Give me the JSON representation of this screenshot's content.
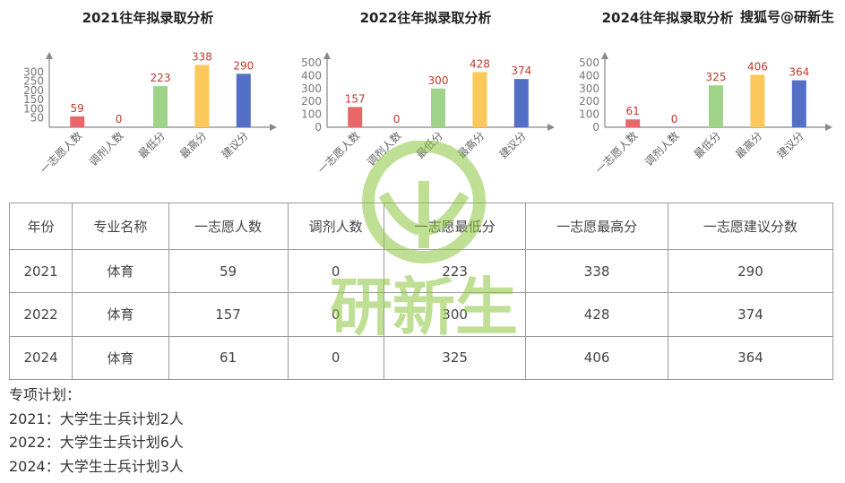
{
  "chart_data": [
    {
      "type": "bar",
      "title": "2021往年拟录取分析",
      "categories": [
        "一志愿人数",
        "调剂人数",
        "最低分",
        "最高分",
        "建议分"
      ],
      "values": [
        59,
        0,
        223,
        338,
        290
      ],
      "colors": [
        "#e8686a",
        "#f4a261",
        "#9fd38a",
        "#fbc85a",
        "#5470c6"
      ],
      "ylim": [
        0,
        350
      ],
      "yticks": [
        50,
        100,
        150,
        200,
        250,
        300
      ]
    },
    {
      "type": "bar",
      "title": "2022往年拟录取分析",
      "categories": [
        "一志愿人数",
        "调剂人数",
        "最低分",
        "最高分",
        "建议分"
      ],
      "values": [
        157,
        0,
        300,
        428,
        374
      ],
      "colors": [
        "#e8686a",
        "#f4a261",
        "#9fd38a",
        "#fbc85a",
        "#5470c6"
      ],
      "ylim": [
        0,
        500
      ],
      "yticks": [
        0,
        100,
        200,
        300,
        400,
        500
      ]
    },
    {
      "type": "bar",
      "title": "2024往年拟录取分析",
      "categories": [
        "一志愿人数",
        "调剂人数",
        "最低分",
        "最高分",
        "建议分"
      ],
      "values": [
        61,
        0,
        325,
        406,
        364
      ],
      "colors": [
        "#e8686a",
        "#f4a261",
        "#9fd38a",
        "#fbc85a",
        "#5470c6"
      ],
      "ylim": [
        0,
        500
      ],
      "yticks": [
        0,
        100,
        200,
        300,
        400,
        500
      ]
    }
  ],
  "watermark": "搜狐号@研新生",
  "logo_text": "研新生",
  "table": {
    "headers": [
      "年份",
      "专业名称",
      "一志愿人数",
      "调剂人数",
      "一志愿最低分",
      "一志愿最高分",
      "一志愿建议分数"
    ],
    "rows": [
      [
        "2021",
        "体育",
        "59",
        "0",
        "223",
        "338",
        "290"
      ],
      [
        "2022",
        "体育",
        "157",
        "0",
        "300",
        "428",
        "374"
      ],
      [
        "2024",
        "体育",
        "61",
        "0",
        "325",
        "406",
        "364"
      ]
    ]
  },
  "notes": {
    "title": "专项计划：",
    "lines": [
      "2021：大学生士兵计划2人",
      "2022：大学生士兵计划6人",
      "2024：大学生士兵计划3人"
    ]
  }
}
